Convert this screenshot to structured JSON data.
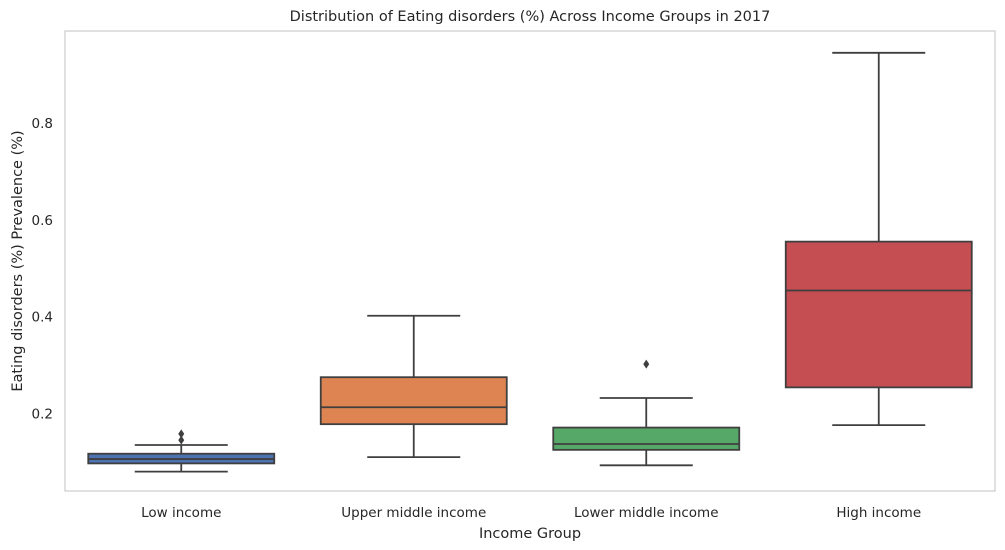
{
  "chart_data": {
    "type": "box",
    "title": "Distribution of Eating disorders (%) Across Income Groups in 2017",
    "xlabel": "Income Group",
    "ylabel": "Eating disorders (%) Prevalence (%)",
    "ylim": [
      0.04,
      0.99
    ],
    "yticks": [
      0.2,
      0.4,
      0.6,
      0.8
    ],
    "grid": false,
    "legend": "none",
    "categories": [
      "Low income",
      "Upper middle income",
      "Lower middle income",
      "High income"
    ],
    "colors": [
      "#4c72b0",
      "#dd8452",
      "#55a868",
      "#c44e52"
    ],
    "series": [
      {
        "whisker_low": 0.08,
        "q1": 0.097,
        "median": 0.106,
        "q3": 0.117,
        "whisker_high": 0.135,
        "outliers": [
          0.145,
          0.158
        ]
      },
      {
        "whisker_low": 0.11,
        "q1": 0.178,
        "median": 0.213,
        "q3": 0.275,
        "whisker_high": 0.402,
        "outliers": []
      },
      {
        "whisker_low": 0.093,
        "q1": 0.125,
        "median": 0.137,
        "q3": 0.171,
        "whisker_high": 0.232,
        "outliers": [
          0.302
        ]
      },
      {
        "whisker_low": 0.176,
        "q1": 0.254,
        "median": 0.454,
        "q3": 0.555,
        "whisker_high": 0.945,
        "outliers": []
      }
    ]
  }
}
